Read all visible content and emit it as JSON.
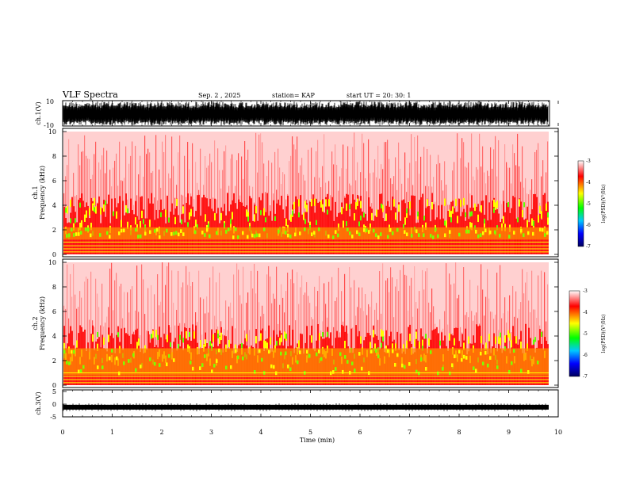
{
  "header": {
    "title": "VLF Spectra",
    "date": "Sep. 2 , 2025",
    "station": "station= KAP",
    "start_ut": "start UT = 20: 30: 1"
  },
  "chart_data": [
    {
      "type": "line",
      "ylabel": "ch.1(V)",
      "ylim": [
        -10,
        10
      ],
      "yticks": [
        "10",
        "-10"
      ],
      "xlim": [
        0,
        10
      ],
      "description_values": "dense waveform spanning roughly -8 to 10 V"
    },
    {
      "type": "heatmap",
      "ylabel": "ch.1\nFrequency (kHz)",
      "ylabel_line1": "ch.1",
      "ylabel_line2": "Frequency (kHz)",
      "ylim": [
        0,
        10
      ],
      "yticks": [
        "0",
        "2",
        "4",
        "6",
        "8",
        "10"
      ],
      "xlim": [
        0,
        10
      ],
      "band_khz": [
        1.2,
        2.2
      ],
      "colorbar": {
        "label": "log(PSD)(V²/Hz)",
        "ticks": [
          "-3",
          "-4",
          "-5",
          "-6",
          "-7"
        ],
        "range": [
          -7,
          -3
        ]
      }
    },
    {
      "type": "heatmap",
      "ylabel_line1": "ch.2",
      "ylabel_line2": "Frequency (kHz)",
      "ylim": [
        0,
        10
      ],
      "yticks": [
        "0",
        "2",
        "4",
        "6",
        "8",
        "10"
      ],
      "xlim": [
        0,
        10
      ],
      "band_khz": [
        0.8,
        3.0
      ],
      "colorbar": {
        "label": "log(PSD)(V²/Hz)",
        "ticks": [
          "-3",
          "-4",
          "-5",
          "-6",
          "-7"
        ],
        "range": [
          -7,
          -3
        ]
      }
    },
    {
      "type": "line",
      "ylabel": "ch.3(V)",
      "ylim": [
        -5,
        5
      ],
      "yticks": [
        "5",
        "0",
        "-5"
      ],
      "xlim": [
        0,
        10
      ],
      "xlabel": "Time (min)",
      "xticks": [
        "0",
        "1",
        "2",
        "3",
        "4",
        "5",
        "6",
        "7",
        "8",
        "9",
        "10"
      ],
      "level_v": -1.2
    }
  ],
  "colors": {
    "spec_red": "#ff0000",
    "spec_orange": "#ff8c00",
    "spec_yellow": "#ffff00",
    "spec_green": "#00ff00",
    "colorbar_stops": [
      "#ffffff",
      "#ff0000",
      "#ffff00",
      "#00ff00",
      "#00c8ff",
      "#0000ff",
      "#000080"
    ]
  }
}
